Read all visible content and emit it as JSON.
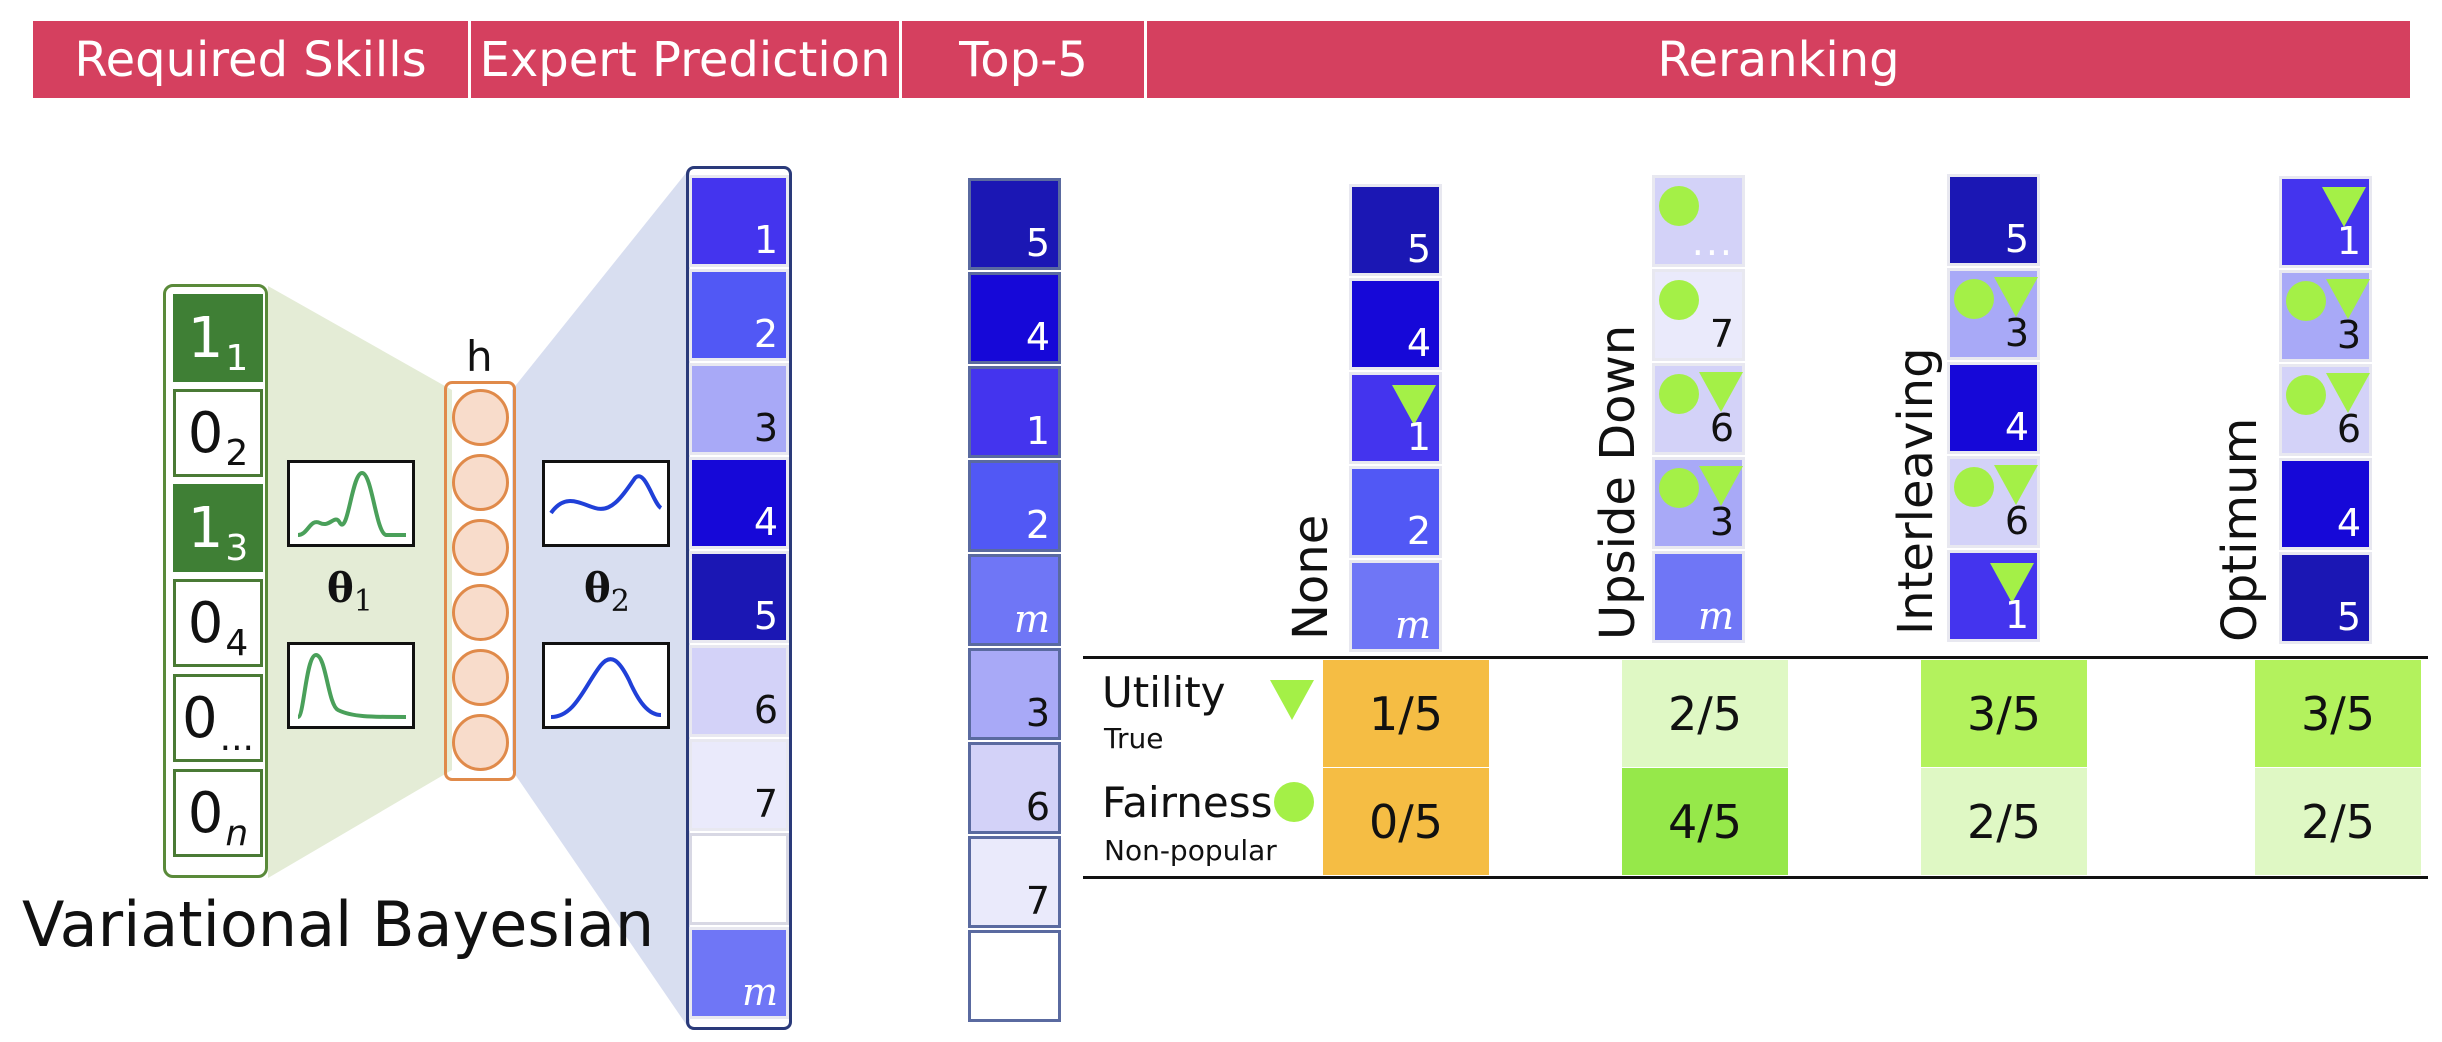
{
  "header": {
    "required_skills": "Required Skills",
    "expert_prediction": "Expert Prediction",
    "top5": "Top-5",
    "reranking": "Reranking"
  },
  "model": {
    "title": "Variational Bayesian",
    "hidden_label": "h",
    "theta1": "θ",
    "theta1_sub": "1",
    "theta2": "θ",
    "theta2_sub": "2",
    "inputs": [
      {
        "main": "1",
        "sub": "1",
        "active": true
      },
      {
        "main": "0",
        "sub": "2",
        "active": false
      },
      {
        "main": "1",
        "sub": "3",
        "active": true
      },
      {
        "main": "0",
        "sub": "4",
        "active": false
      },
      {
        "main": "0",
        "sub": "...",
        "active": false
      },
      {
        "main": "0",
        "sub": "n",
        "active": false
      }
    ]
  },
  "prediction_stack": [
    "1",
    "2",
    "3",
    "4",
    "5",
    "6",
    "7",
    "...",
    "m"
  ],
  "top5_stack": [
    "5",
    "4",
    "1",
    "2",
    "m",
    "3",
    "6",
    "7",
    "..."
  ],
  "methods": [
    {
      "name": "None",
      "stack": [
        "5",
        "4",
        "1",
        "2",
        "m"
      ],
      "utility": "1/5",
      "fairness": "0/5"
    },
    {
      "name": "Upside Down",
      "stack": [
        "...",
        "7",
        "6",
        "3",
        "m"
      ],
      "utility": "2/5",
      "fairness": "4/5"
    },
    {
      "name": "Interleaving",
      "stack": [
        "5",
        "3",
        "4",
        "6",
        "1"
      ],
      "utility": "3/5",
      "fairness": "2/5"
    },
    {
      "name": "Optimum",
      "stack": [
        "1",
        "3",
        "6",
        "4",
        "5"
      ],
      "utility": "3/5",
      "fairness": "2/5"
    }
  ],
  "table": {
    "utility_label": "Utility",
    "utility_sub": "True",
    "fairness_label": "Fairness",
    "fairness_sub": "Non-popular"
  },
  "colors": {
    "header": "#d5405f",
    "input_green": "#3f7f35",
    "marker_green": "#a4f047",
    "score_orange": "#f5bd44",
    "score_green_strong": "#96e84a",
    "score_green_mid": "#b3f25d",
    "score_green_light": "#dff8c4"
  }
}
